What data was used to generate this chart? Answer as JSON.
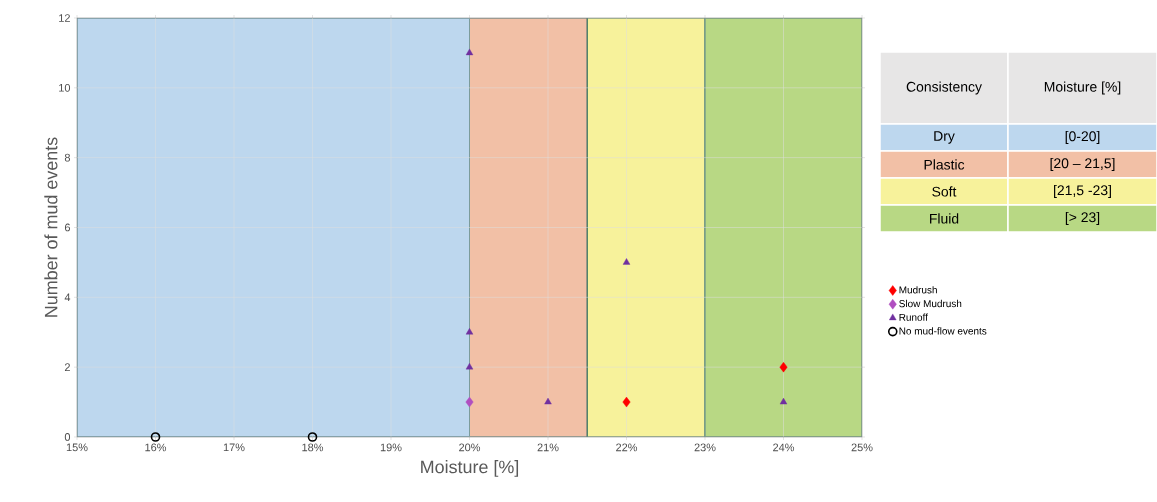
{
  "chart_data": {
    "type": "scatter",
    "xlabel": "Moisture [%]",
    "ylabel": "Number of mud events",
    "xlim": [
      15,
      25
    ],
    "ylim": [
      0,
      12
    ],
    "xticks": [
      {
        "value": 15,
        "label": "15%"
      },
      {
        "value": 16,
        "label": "16%"
      },
      {
        "value": 17,
        "label": "17%"
      },
      {
        "value": 18,
        "label": "18%"
      },
      {
        "value": 19,
        "label": "19%"
      },
      {
        "value": 20,
        "label": "20%"
      },
      {
        "value": 21,
        "label": "21%"
      },
      {
        "value": 22,
        "label": "22%"
      },
      {
        "value": 23,
        "label": "23%"
      },
      {
        "value": 24,
        "label": "24%"
      },
      {
        "value": 25,
        "label": "25%"
      }
    ],
    "yticks": [
      0,
      2,
      4,
      6,
      8,
      10,
      12
    ],
    "grid": true,
    "legend": "right",
    "bands": [
      {
        "axis": "x",
        "from": 15,
        "to": 20,
        "color": "#bdd7ee"
      },
      {
        "axis": "x",
        "from": 20,
        "to": 21.5,
        "color": "#f2c0a6"
      },
      {
        "axis": "x",
        "from": 21.5,
        "to": 23,
        "color": "#f7f29b"
      },
      {
        "axis": "x",
        "from": 23,
        "to": 25,
        "color": "#b8d884"
      }
    ],
    "annotations": [
      "Consistency",
      "Moisture [%]",
      "Dry",
      "[0-20]",
      "Plastic",
      "[20 – 21,5]",
      "Soft",
      "[21,5 -23]",
      "Fluid",
      "[> 23]"
    ],
    "series": [
      {
        "name": "Mudrush",
        "color": "#ff0000",
        "marker": "diamond",
        "x": [
          22,
          24
        ],
        "values": [
          1,
          2
        ]
      },
      {
        "name": "Slow Mudrush",
        "color": "#b04fc0",
        "marker": "diamond",
        "x": [
          20
        ],
        "values": [
          1
        ]
      },
      {
        "name": "Runoff",
        "color": "#7030a0",
        "marker": "triangle",
        "x": [
          20,
          20,
          20,
          21,
          22,
          24
        ],
        "values": [
          11,
          3,
          2,
          1,
          5,
          1
        ]
      },
      {
        "name": "No mud-flow events",
        "color": "#000000",
        "marker": "circle",
        "x": [
          16,
          18
        ],
        "values": [
          0,
          0
        ]
      }
    ]
  }
}
